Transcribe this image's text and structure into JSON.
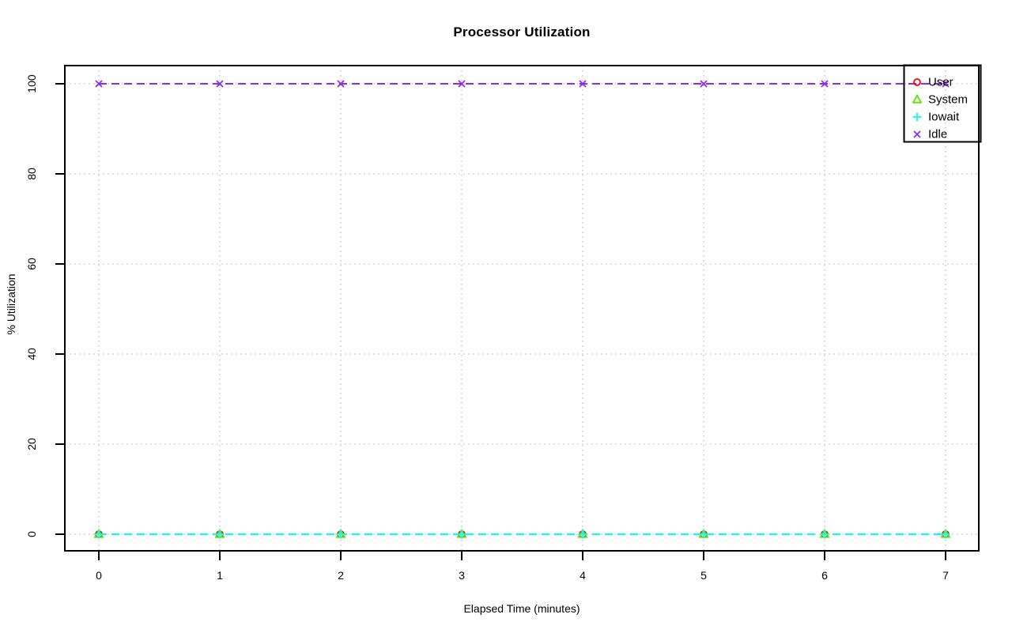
{
  "title": "Processor Utilization",
  "chart_data": {
    "type": "line",
    "title": "Processor Utilization",
    "xlabel": "Elapsed Time (minutes)",
    "ylabel": "% Utilization",
    "xlim": [
      0,
      7
    ],
    "ylim": [
      0,
      100
    ],
    "x_ticks": [
      0,
      1,
      2,
      3,
      4,
      5,
      6,
      7
    ],
    "y_ticks": [
      0,
      20,
      40,
      60,
      80,
      100
    ],
    "x": [
      0,
      1,
      2,
      3,
      4,
      5,
      6,
      7
    ],
    "grid": "dotted",
    "line_style": "dashed",
    "legend_position": "top-right",
    "legend_border": true,
    "series": [
      {
        "name": "User",
        "color": "#FF0000",
        "marker": "circle-open",
        "values": [
          0,
          0,
          0,
          0,
          0,
          0,
          0,
          0
        ]
      },
      {
        "name": "System",
        "color": "#54E400",
        "marker": "triangle-open",
        "values": [
          0,
          0,
          0,
          0,
          0,
          0,
          0,
          0
        ]
      },
      {
        "name": "Iowait",
        "color": "#00FFFF",
        "marker": "plus",
        "values": [
          0,
          0,
          0,
          0,
          0,
          0,
          0,
          0
        ]
      },
      {
        "name": "Idle",
        "color": "#8F2BE8",
        "marker": "x",
        "values": [
          100,
          100,
          100,
          100,
          100,
          100,
          100,
          100
        ]
      }
    ]
  },
  "colors": {
    "background": "#FFFFFF",
    "axis": "#000000",
    "text": "#000000",
    "grid": "#C3C3C3"
  }
}
